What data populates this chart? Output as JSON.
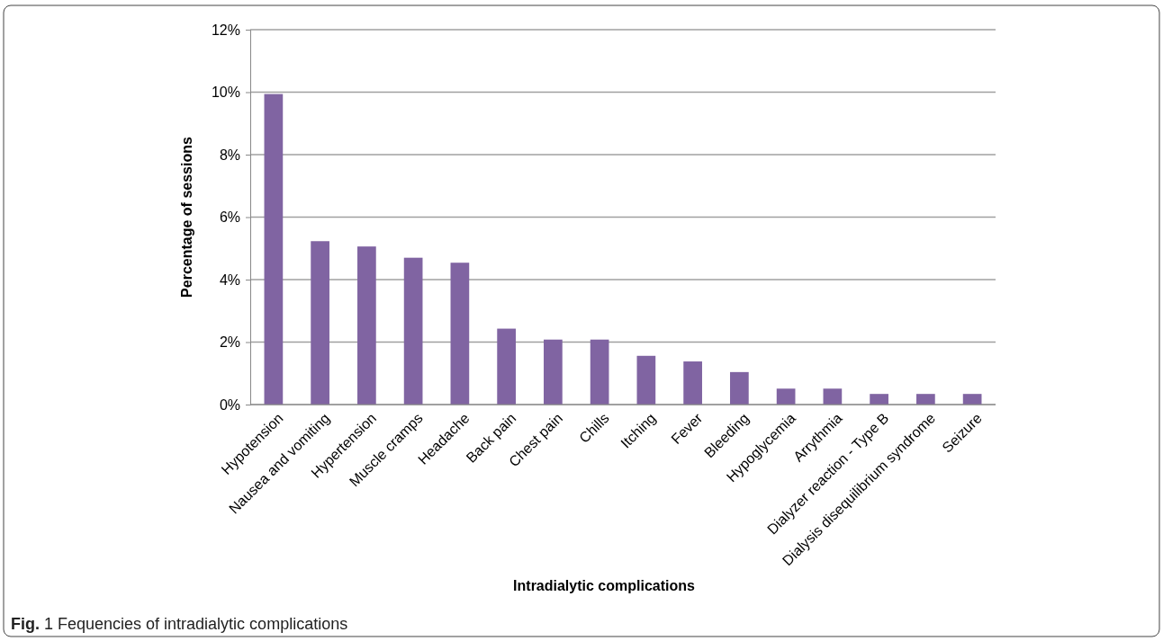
{
  "chart_data": {
    "type": "bar",
    "xlabel": "Intradialytic complications",
    "ylabel": "Percentage of sessions",
    "categories": [
      "Hypotension",
      "Nausea and vomiting",
      "Hypertension",
      "Muscle cramps",
      "Headache",
      "Back pain",
      "Chest pain",
      "Chills",
      "Itching",
      "Fever",
      "Bleeding",
      "Hypoglycemia",
      "Arrythmia",
      "Dialyzer reaction - Type B",
      "Dialysis disequilibrium syndrome",
      "Seizure"
    ],
    "values": [
      9.94,
      5.23,
      5.06,
      4.7,
      4.54,
      2.43,
      2.08,
      2.08,
      1.56,
      1.38,
      1.04,
      0.51,
      0.51,
      0.34,
      0.34,
      0.34
    ],
    "color": "#8064a2",
    "ylim": [
      0,
      12
    ],
    "yticks": [
      {
        "value": 0,
        "label": "0%"
      },
      {
        "value": 2,
        "label": "2%"
      },
      {
        "value": 4,
        "label": "4%"
      },
      {
        "value": 6,
        "label": "6%"
      },
      {
        "value": 8,
        "label": "8%"
      },
      {
        "value": 10,
        "label": "10%"
      },
      {
        "value": 12,
        "label": "12%"
      }
    ],
    "grid": "y",
    "annotations": [
      "Fig. 1 Fequencies of intradialytic complications"
    ]
  }
}
